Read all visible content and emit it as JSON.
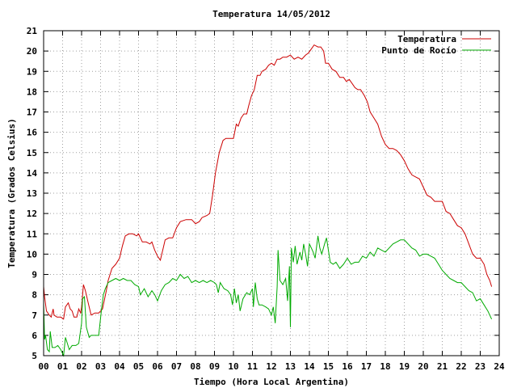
{
  "chart_data": {
    "type": "line",
    "title": "Temperatura 14/05/2012",
    "xlabel": "Tiempo (Hora Local Argentina)",
    "ylabel": "Temperatura (Grados Celsius)",
    "xlim": [
      0,
      24
    ],
    "ylim": [
      5,
      21
    ],
    "grid": true,
    "legend_position": "top-right",
    "x_ticks": [
      "00",
      "01",
      "02",
      "03",
      "04",
      "05",
      "06",
      "07",
      "08",
      "09",
      "10",
      "11",
      "12",
      "13",
      "14",
      "15",
      "16",
      "17",
      "18",
      "19",
      "20",
      "21",
      "22",
      "23",
      "24"
    ],
    "y_ticks": [
      "5",
      "6",
      "7",
      "8",
      "9",
      "10",
      "11",
      "12",
      "13",
      "14",
      "15",
      "16",
      "17",
      "18",
      "19",
      "20",
      "21"
    ],
    "series": [
      {
        "name": "Temperatura",
        "color": "#cc0000",
        "points": [
          [
            0.0,
            8.4
          ],
          [
            0.05,
            7.9
          ],
          [
            0.15,
            7.2
          ],
          [
            0.3,
            7.0
          ],
          [
            0.4,
            6.9
          ],
          [
            0.5,
            7.3
          ],
          [
            0.55,
            7.0
          ],
          [
            0.7,
            6.9
          ],
          [
            0.9,
            6.9
          ],
          [
            1.05,
            6.8
          ],
          [
            1.15,
            7.4
          ],
          [
            1.3,
            7.6
          ],
          [
            1.4,
            7.3
          ],
          [
            1.5,
            7.2
          ],
          [
            1.6,
            6.9
          ],
          [
            1.75,
            6.9
          ],
          [
            1.85,
            7.3
          ],
          [
            1.95,
            7.1
          ],
          [
            2.0,
            7.4
          ],
          [
            2.1,
            8.5
          ],
          [
            2.2,
            8.2
          ],
          [
            2.35,
            7.6
          ],
          [
            2.5,
            7.0
          ],
          [
            2.7,
            7.1
          ],
          [
            2.9,
            7.1
          ],
          [
            3.1,
            7.3
          ],
          [
            3.3,
            8.2
          ],
          [
            3.4,
            8.7
          ],
          [
            3.6,
            9.3
          ],
          [
            3.8,
            9.5
          ],
          [
            4.0,
            9.8
          ],
          [
            4.15,
            10.4
          ],
          [
            4.3,
            10.9
          ],
          [
            4.5,
            11.0
          ],
          [
            4.7,
            11.0
          ],
          [
            4.9,
            10.9
          ],
          [
            5.0,
            11.0
          ],
          [
            5.2,
            10.6
          ],
          [
            5.4,
            10.6
          ],
          [
            5.6,
            10.5
          ],
          [
            5.7,
            10.6
          ],
          [
            5.85,
            10.2
          ],
          [
            6.0,
            9.9
          ],
          [
            6.15,
            9.7
          ],
          [
            6.3,
            10.3
          ],
          [
            6.4,
            10.7
          ],
          [
            6.6,
            10.8
          ],
          [
            6.8,
            10.8
          ],
          [
            7.0,
            11.3
          ],
          [
            7.2,
            11.6
          ],
          [
            7.5,
            11.7
          ],
          [
            7.8,
            11.7
          ],
          [
            8.0,
            11.5
          ],
          [
            8.2,
            11.6
          ],
          [
            8.35,
            11.8
          ],
          [
            8.6,
            11.9
          ],
          [
            8.75,
            12.0
          ],
          [
            8.9,
            12.9
          ],
          [
            9.05,
            14.0
          ],
          [
            9.25,
            15.0
          ],
          [
            9.45,
            15.6
          ],
          [
            9.6,
            15.7
          ],
          [
            9.85,
            15.7
          ],
          [
            10.0,
            15.7
          ],
          [
            10.15,
            16.4
          ],
          [
            10.25,
            16.3
          ],
          [
            10.4,
            16.7
          ],
          [
            10.55,
            16.9
          ],
          [
            10.7,
            16.9
          ],
          [
            10.8,
            17.3
          ],
          [
            10.95,
            17.8
          ],
          [
            11.1,
            18.1
          ],
          [
            11.25,
            18.8
          ],
          [
            11.4,
            18.8
          ],
          [
            11.5,
            19.0
          ],
          [
            11.7,
            19.1
          ],
          [
            11.85,
            19.3
          ],
          [
            12.0,
            19.4
          ],
          [
            12.15,
            19.3
          ],
          [
            12.3,
            19.6
          ],
          [
            12.45,
            19.6
          ],
          [
            12.6,
            19.7
          ],
          [
            12.8,
            19.7
          ],
          [
            13.0,
            19.8
          ],
          [
            13.2,
            19.6
          ],
          [
            13.4,
            19.7
          ],
          [
            13.6,
            19.6
          ],
          [
            13.8,
            19.8
          ],
          [
            13.95,
            19.9
          ],
          [
            14.1,
            20.1
          ],
          [
            14.25,
            20.3
          ],
          [
            14.45,
            20.2
          ],
          [
            14.6,
            20.2
          ],
          [
            14.75,
            20.0
          ],
          [
            14.85,
            19.4
          ],
          [
            15.0,
            19.4
          ],
          [
            15.2,
            19.1
          ],
          [
            15.4,
            19.0
          ],
          [
            15.6,
            18.7
          ],
          [
            15.8,
            18.7
          ],
          [
            15.95,
            18.5
          ],
          [
            16.1,
            18.6
          ],
          [
            16.25,
            18.4
          ],
          [
            16.4,
            18.2
          ],
          [
            16.55,
            18.1
          ],
          [
            16.7,
            18.1
          ],
          [
            16.9,
            17.8
          ],
          [
            17.05,
            17.5
          ],
          [
            17.2,
            17.0
          ],
          [
            17.4,
            16.7
          ],
          [
            17.6,
            16.4
          ],
          [
            17.8,
            15.8
          ],
          [
            18.0,
            15.4
          ],
          [
            18.2,
            15.2
          ],
          [
            18.4,
            15.2
          ],
          [
            18.6,
            15.1
          ],
          [
            18.8,
            14.9
          ],
          [
            19.0,
            14.6
          ],
          [
            19.2,
            14.2
          ],
          [
            19.4,
            13.9
          ],
          [
            19.6,
            13.8
          ],
          [
            19.8,
            13.7
          ],
          [
            20.0,
            13.3
          ],
          [
            20.2,
            12.9
          ],
          [
            20.4,
            12.8
          ],
          [
            20.6,
            12.6
          ],
          [
            20.8,
            12.6
          ],
          [
            21.0,
            12.6
          ],
          [
            21.2,
            12.1
          ],
          [
            21.4,
            12.0
          ],
          [
            21.6,
            11.7
          ],
          [
            21.8,
            11.4
          ],
          [
            22.0,
            11.3
          ],
          [
            22.2,
            11.0
          ],
          [
            22.4,
            10.5
          ],
          [
            22.6,
            10.0
          ],
          [
            22.8,
            9.8
          ],
          [
            23.0,
            9.8
          ],
          [
            23.2,
            9.5
          ],
          [
            23.35,
            9.0
          ],
          [
            23.5,
            8.7
          ],
          [
            23.6,
            8.4
          ]
        ]
      },
      {
        "name": "Punto de Rocío",
        "color": "#00aa00",
        "points": [
          [
            0.0,
            7.6
          ],
          [
            0.05,
            5.8
          ],
          [
            0.1,
            6.0
          ],
          [
            0.2,
            5.3
          ],
          [
            0.3,
            5.2
          ],
          [
            0.35,
            6.2
          ],
          [
            0.45,
            5.4
          ],
          [
            0.6,
            5.4
          ],
          [
            0.75,
            5.5
          ],
          [
            0.9,
            5.3
          ],
          [
            1.05,
            5.0
          ],
          [
            1.15,
            5.9
          ],
          [
            1.25,
            5.6
          ],
          [
            1.35,
            5.3
          ],
          [
            1.5,
            5.5
          ],
          [
            1.7,
            5.5
          ],
          [
            1.85,
            5.6
          ],
          [
            2.0,
            6.6
          ],
          [
            2.05,
            7.8
          ],
          [
            2.15,
            7.9
          ],
          [
            2.25,
            6.4
          ],
          [
            2.4,
            5.9
          ],
          [
            2.5,
            6.0
          ],
          [
            2.7,
            6.0
          ],
          [
            2.9,
            6.0
          ],
          [
            3.05,
            7.3
          ],
          [
            3.15,
            8.0
          ],
          [
            3.25,
            8.3
          ],
          [
            3.4,
            8.6
          ],
          [
            3.6,
            8.7
          ],
          [
            3.8,
            8.8
          ],
          [
            4.0,
            8.7
          ],
          [
            4.2,
            8.8
          ],
          [
            4.4,
            8.7
          ],
          [
            4.6,
            8.7
          ],
          [
            4.8,
            8.5
          ],
          [
            5.0,
            8.4
          ],
          [
            5.1,
            8.0
          ],
          [
            5.3,
            8.3
          ],
          [
            5.5,
            7.9
          ],
          [
            5.7,
            8.2
          ],
          [
            5.85,
            8.0
          ],
          [
            6.0,
            7.7
          ],
          [
            6.2,
            8.2
          ],
          [
            6.4,
            8.5
          ],
          [
            6.6,
            8.6
          ],
          [
            6.8,
            8.8
          ],
          [
            7.0,
            8.7
          ],
          [
            7.2,
            9.0
          ],
          [
            7.4,
            8.8
          ],
          [
            7.6,
            8.9
          ],
          [
            7.8,
            8.6
          ],
          [
            8.0,
            8.7
          ],
          [
            8.2,
            8.6
          ],
          [
            8.4,
            8.7
          ],
          [
            8.6,
            8.6
          ],
          [
            8.8,
            8.7
          ],
          [
            9.0,
            8.6
          ],
          [
            9.1,
            8.5
          ],
          [
            9.2,
            8.1
          ],
          [
            9.3,
            8.6
          ],
          [
            9.5,
            8.3
          ],
          [
            9.7,
            8.2
          ],
          [
            9.85,
            8.0
          ],
          [
            9.95,
            7.5
          ],
          [
            10.05,
            8.3
          ],
          [
            10.15,
            7.6
          ],
          [
            10.25,
            8.0
          ],
          [
            10.35,
            7.2
          ],
          [
            10.5,
            7.8
          ],
          [
            10.7,
            8.1
          ],
          [
            10.85,
            8.0
          ],
          [
            11.0,
            8.3
          ],
          [
            11.05,
            7.4
          ],
          [
            11.15,
            8.6
          ],
          [
            11.25,
            7.8
          ],
          [
            11.35,
            7.5
          ],
          [
            11.5,
            7.5
          ],
          [
            11.7,
            7.4
          ],
          [
            11.85,
            7.3
          ],
          [
            12.0,
            7.0
          ],
          [
            12.1,
            7.4
          ],
          [
            12.2,
            6.6
          ],
          [
            12.3,
            8.4
          ],
          [
            12.35,
            10.2
          ],
          [
            12.45,
            8.7
          ],
          [
            12.6,
            8.5
          ],
          [
            12.75,
            8.8
          ],
          [
            12.85,
            7.7
          ],
          [
            12.95,
            9.4
          ],
          [
            13.0,
            6.4
          ],
          [
            13.05,
            10.3
          ],
          [
            13.15,
            9.6
          ],
          [
            13.25,
            10.4
          ],
          [
            13.35,
            9.5
          ],
          [
            13.5,
            10.1
          ],
          [
            13.6,
            9.7
          ],
          [
            13.7,
            10.5
          ],
          [
            13.8,
            10.0
          ],
          [
            13.9,
            9.4
          ],
          [
            14.0,
            10.5
          ],
          [
            14.1,
            10.3
          ],
          [
            14.2,
            10.1
          ],
          [
            14.3,
            9.8
          ],
          [
            14.45,
            10.9
          ],
          [
            14.55,
            10.3
          ],
          [
            14.65,
            10.0
          ],
          [
            14.8,
            10.5
          ],
          [
            14.9,
            10.8
          ],
          [
            15.0,
            10.2
          ],
          [
            15.1,
            9.6
          ],
          [
            15.25,
            9.5
          ],
          [
            15.4,
            9.6
          ],
          [
            15.6,
            9.3
          ],
          [
            15.8,
            9.5
          ],
          [
            16.0,
            9.8
          ],
          [
            16.2,
            9.5
          ],
          [
            16.4,
            9.6
          ],
          [
            16.6,
            9.6
          ],
          [
            16.8,
            9.9
          ],
          [
            17.0,
            9.8
          ],
          [
            17.2,
            10.1
          ],
          [
            17.4,
            9.9
          ],
          [
            17.6,
            10.3
          ],
          [
            17.8,
            10.2
          ],
          [
            18.0,
            10.1
          ],
          [
            18.2,
            10.3
          ],
          [
            18.4,
            10.5
          ],
          [
            18.6,
            10.6
          ],
          [
            18.8,
            10.7
          ],
          [
            19.0,
            10.7
          ],
          [
            19.2,
            10.5
          ],
          [
            19.4,
            10.3
          ],
          [
            19.6,
            10.2
          ],
          [
            19.8,
            9.9
          ],
          [
            20.0,
            10.0
          ],
          [
            20.2,
            10.0
          ],
          [
            20.4,
            9.9
          ],
          [
            20.6,
            9.8
          ],
          [
            20.8,
            9.5
          ],
          [
            21.0,
            9.2
          ],
          [
            21.2,
            9.0
          ],
          [
            21.4,
            8.8
          ],
          [
            21.6,
            8.7
          ],
          [
            21.8,
            8.6
          ],
          [
            22.0,
            8.6
          ],
          [
            22.2,
            8.4
          ],
          [
            22.4,
            8.2
          ],
          [
            22.6,
            8.1
          ],
          [
            22.8,
            7.7
          ],
          [
            23.0,
            7.8
          ],
          [
            23.2,
            7.5
          ],
          [
            23.4,
            7.2
          ],
          [
            23.6,
            6.8
          ]
        ]
      }
    ]
  }
}
